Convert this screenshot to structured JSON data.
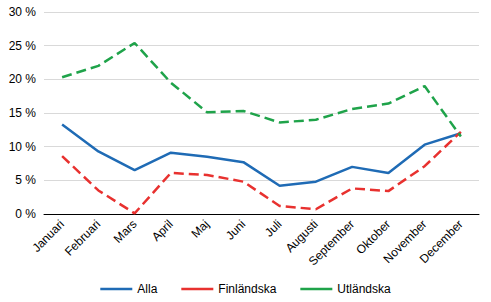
{
  "chart_data": {
    "type": "line",
    "categories": [
      "Januari",
      "Februari",
      "Mars",
      "April",
      "Maj",
      "Juni",
      "Juli",
      "Augusti",
      "September",
      "Oktober",
      "November",
      "December"
    ],
    "series": [
      {
        "name": "Alla",
        "color": "#1f6bb5",
        "line_style": "solid",
        "values": [
          13.3,
          9.3,
          6.5,
          9.1,
          8.5,
          7.7,
          4.2,
          4.8,
          7.0,
          6.1,
          10.3,
          12.0
        ]
      },
      {
        "name": "Finländska",
        "color": "#e8312f",
        "line_style": "dashed",
        "values": [
          8.6,
          3.5,
          0.1,
          6.1,
          5.8,
          4.8,
          1.2,
          0.7,
          3.8,
          3.4,
          7.1,
          12.2
        ]
      },
      {
        "name": "Utländska",
        "color": "#1fa34a",
        "line_style": "dashed",
        "values": [
          20.3,
          22.0,
          25.4,
          19.5,
          15.1,
          15.3,
          13.6,
          14.0,
          15.6,
          16.4,
          19.0,
          11.5
        ]
      }
    ],
    "ylim": [
      0,
      30
    ],
    "yticks": [
      {
        "value": 0,
        "label": "0 %"
      },
      {
        "value": 5,
        "label": "5 %"
      },
      {
        "value": 10,
        "label": "10 %"
      },
      {
        "value": 15,
        "label": "15 %"
      },
      {
        "value": 20,
        "label": "20 %"
      },
      {
        "value": 25,
        "label": "25 %"
      },
      {
        "value": 30,
        "label": "30 %"
      }
    ],
    "grid": true,
    "legend": "bottom"
  }
}
